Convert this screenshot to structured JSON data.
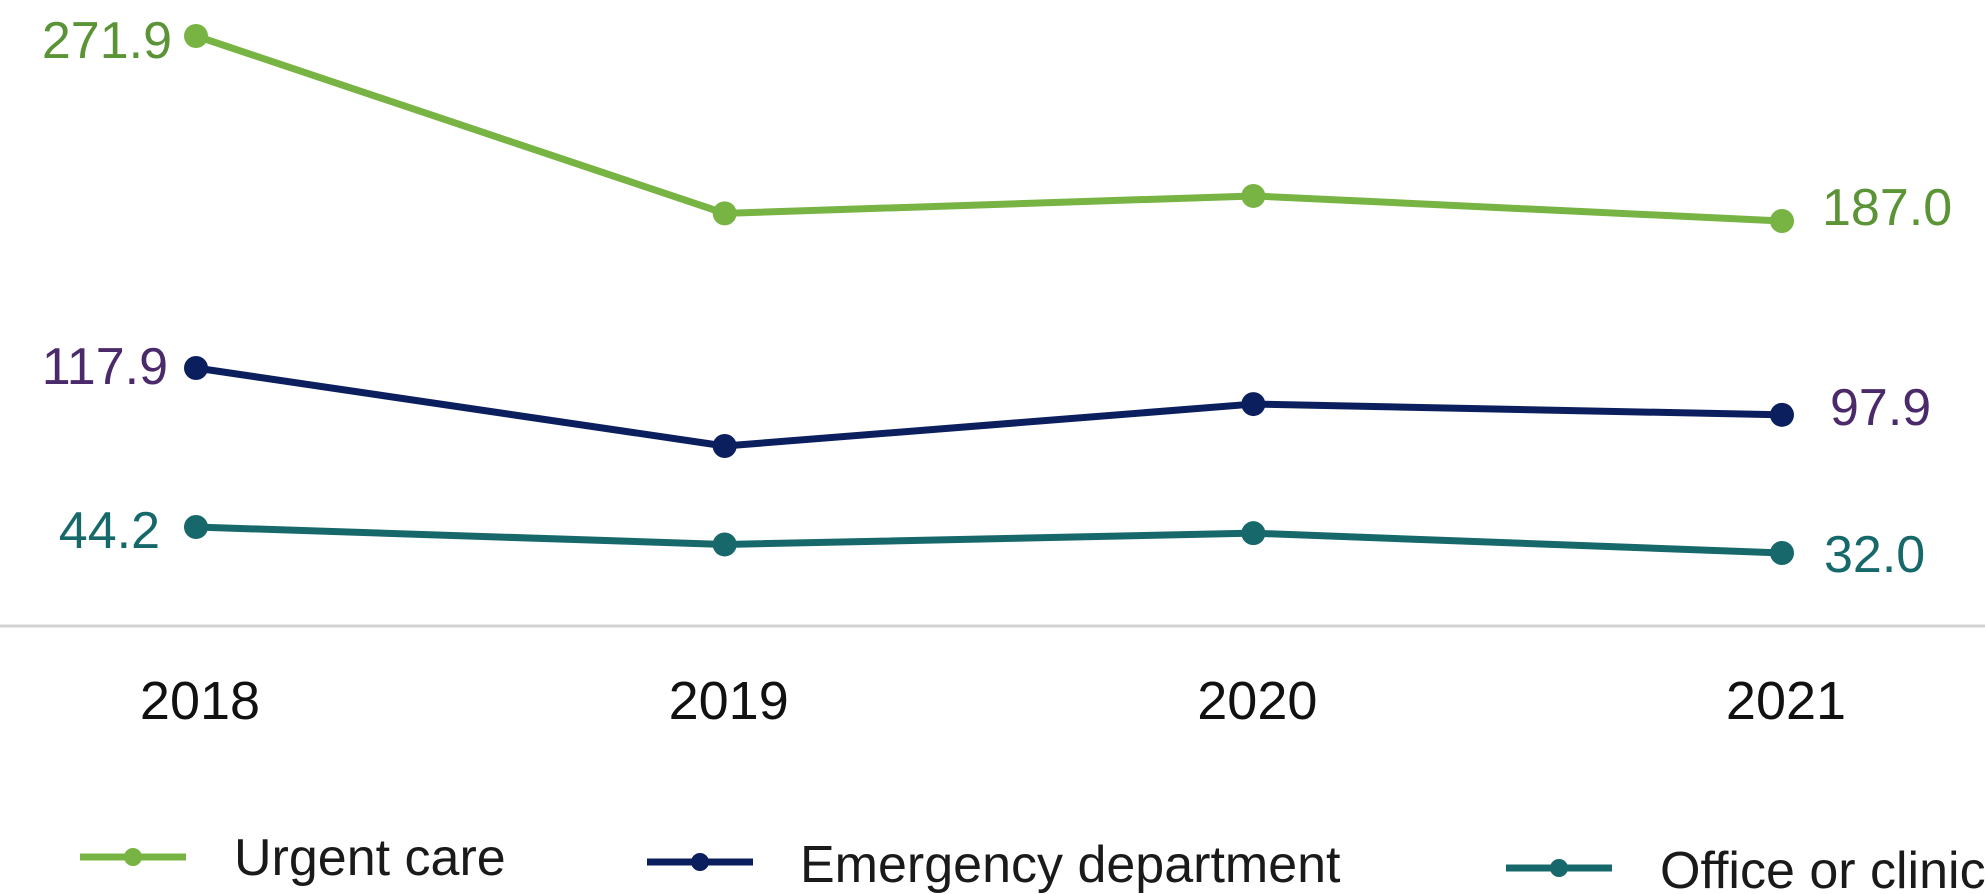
{
  "chart_data": {
    "type": "line",
    "categories": [
      "2018",
      "2019",
      "2020",
      "2021"
    ],
    "series": [
      {
        "name": "Urgent care",
        "values": [
          271.9,
          190.5,
          198.5,
          187.0
        ],
        "color": "#78b443",
        "label_color": "#5b9436",
        "labeled": [
          271.9,
          null,
          null,
          187.0
        ]
      },
      {
        "name": "Emergency department",
        "values": [
          117.9,
          84.6,
          102.5,
          97.9
        ],
        "color": "#0b1f5e",
        "label_color": "#4b2a6b",
        "labeled": [
          117.9,
          null,
          null,
          97.9
        ]
      },
      {
        "name": "Office or clinic",
        "values": [
          44.2,
          36.0,
          41.3,
          32.0
        ],
        "color": "#17686a",
        "label_color": "#17686a",
        "labeled": [
          44.2,
          null,
          null,
          32.0
        ]
      }
    ],
    "endpoint_labels": {
      "urgent_start": "271.9",
      "urgent_end": "187.0",
      "ed_start": "117.9",
      "ed_end": "97.9",
      "office_start": "44.2",
      "office_end": "32.0"
    },
    "ylim": [
      0,
      290
    ],
    "grid": false,
    "legend_position": "bottom"
  }
}
